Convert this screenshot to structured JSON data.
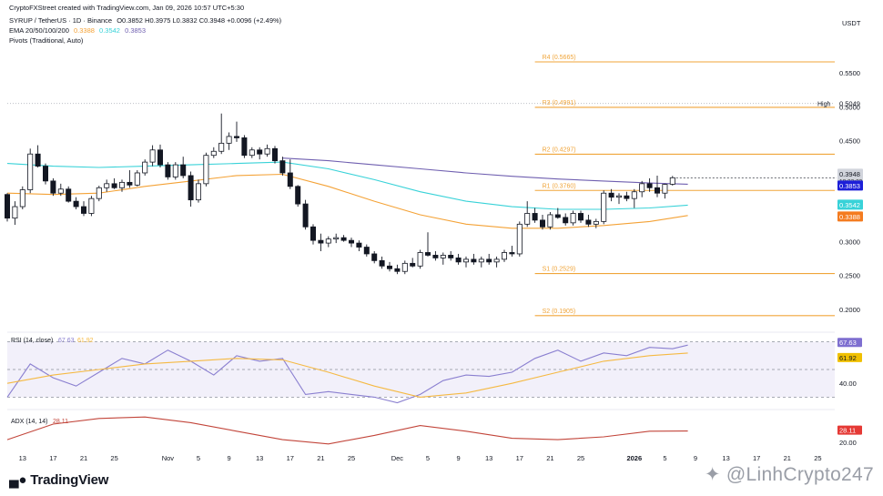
{
  "header": {
    "line1": "CryptoFXStreet created with TradingView.com, Jan 09, 2026 10:57 UTC+5:30",
    "symbol": "SYRUP / TetherUS · 1D · Binance",
    "ohlc": "O0.3852 H0.3975 L0.3832 C0.3948 +0.0096 (+2.49%)",
    "ema_label": "EMA 20/50/100/200",
    "ema_values": [
      "0.3388",
      "0.3542",
      "0.3853"
    ],
    "pivots_label": "Pivots (Traditional, Auto)"
  },
  "colors": {
    "up": "#ffffff",
    "down": "#131722",
    "pivot": "#f0a53a",
    "ema50": "#f4a236",
    "ema100": "#38d2d8",
    "ema200": "#6f5fb0",
    "rsi": "#8a7fd0",
    "rsi_ma": "#f5b942",
    "adx": "#c2453a",
    "high_line": "#b2b5be"
  },
  "branding": {
    "logo": "TradingView",
    "watermark": "LinhCrypto247"
  },
  "chart_data": [
    {
      "type": "candlestick",
      "title": "SYRUP / TetherUS · 1D · Binance",
      "y_axis_label": "USDT",
      "ylim": [
        0.17,
        0.58
      ],
      "yticks": [
        "0.5500",
        "0.5000",
        "0.4500",
        "0.3000",
        "0.2500",
        "0.2000"
      ],
      "x_ticks": [
        {
          "label": "13",
          "i": 2
        },
        {
          "label": "17",
          "i": 6
        },
        {
          "label": "21",
          "i": 10
        },
        {
          "label": "25",
          "i": 14
        },
        {
          "label": "Nov",
          "i": 21
        },
        {
          "label": "5",
          "i": 25
        },
        {
          "label": "9",
          "i": 29
        },
        {
          "label": "13",
          "i": 33
        },
        {
          "label": "17",
          "i": 37
        },
        {
          "label": "21",
          "i": 41
        },
        {
          "label": "25",
          "i": 45
        },
        {
          "label": "Dec",
          "i": 51
        },
        {
          "label": "5",
          "i": 55
        },
        {
          "label": "9",
          "i": 59
        },
        {
          "label": "13",
          "i": 63
        },
        {
          "label": "17",
          "i": 67
        },
        {
          "label": "21",
          "i": 71
        },
        {
          "label": "25",
          "i": 75
        },
        {
          "label": "2026",
          "i": 82
        },
        {
          "label": "5",
          "i": 86
        },
        {
          "label": "9",
          "i": 90
        },
        {
          "label": "13",
          "i": 94
        },
        {
          "label": "17",
          "i": 98
        },
        {
          "label": "21",
          "i": 102
        },
        {
          "label": "25",
          "i": 106
        }
      ],
      "candles": [
        [
          0.37,
          0.372,
          0.33,
          0.335
        ],
        [
          0.335,
          0.36,
          0.325,
          0.352
        ],
        [
          0.352,
          0.382,
          0.348,
          0.377
        ],
        [
          0.377,
          0.438,
          0.372,
          0.43
        ],
        [
          0.43,
          0.443,
          0.41,
          0.412
        ],
        [
          0.412,
          0.416,
          0.385,
          0.39
        ],
        [
          0.39,
          0.394,
          0.368,
          0.372
        ],
        [
          0.372,
          0.386,
          0.368,
          0.378
        ],
        [
          0.378,
          0.382,
          0.358,
          0.36
        ],
        [
          0.36,
          0.366,
          0.348,
          0.352
        ],
        [
          0.352,
          0.36,
          0.338,
          0.342
        ],
        [
          0.342,
          0.368,
          0.338,
          0.364
        ],
        [
          0.364,
          0.383,
          0.36,
          0.38
        ],
        [
          0.38,
          0.392,
          0.374,
          0.386
        ],
        [
          0.386,
          0.394,
          0.378,
          0.38
        ],
        [
          0.38,
          0.392,
          0.374,
          0.388
        ],
        [
          0.388,
          0.406,
          0.38,
          0.384
        ],
        [
          0.384,
          0.406,
          0.382,
          0.402
        ],
        [
          0.402,
          0.422,
          0.398,
          0.418
        ],
        [
          0.418,
          0.443,
          0.412,
          0.436
        ],
        [
          0.436,
          0.444,
          0.41,
          0.414
        ],
        [
          0.414,
          0.418,
          0.392,
          0.396
        ],
        [
          0.396,
          0.418,
          0.392,
          0.414
        ],
        [
          0.414,
          0.426,
          0.394,
          0.398
        ],
        [
          0.398,
          0.404,
          0.352,
          0.362
        ],
        [
          0.362,
          0.392,
          0.358,
          0.386
        ],
        [
          0.386,
          0.432,
          0.382,
          0.428
        ],
        [
          0.428,
          0.44,
          0.424,
          0.434
        ],
        [
          0.434,
          0.49,
          0.43,
          0.446
        ],
        [
          0.446,
          0.462,
          0.436,
          0.456
        ],
        [
          0.456,
          0.478,
          0.448,
          0.454
        ],
        [
          0.454,
          0.458,
          0.424,
          0.428
        ],
        [
          0.428,
          0.44,
          0.424,
          0.436
        ],
        [
          0.436,
          0.44,
          0.422,
          0.43
        ],
        [
          0.43,
          0.444,
          0.426,
          0.438
        ],
        [
          0.438,
          0.442,
          0.416,
          0.42
        ],
        [
          0.42,
          0.426,
          0.398,
          0.402
        ],
        [
          0.402,
          0.422,
          0.378,
          0.382
        ],
        [
          0.382,
          0.384,
          0.352,
          0.356
        ],
        [
          0.356,
          0.362,
          0.318,
          0.322
        ],
        [
          0.322,
          0.326,
          0.296,
          0.302
        ],
        [
          0.302,
          0.312,
          0.286,
          0.298
        ],
        [
          0.298,
          0.308,
          0.292,
          0.304
        ],
        [
          0.304,
          0.312,
          0.298,
          0.306
        ],
        [
          0.306,
          0.31,
          0.3,
          0.302
        ],
        [
          0.302,
          0.306,
          0.292,
          0.298
        ],
        [
          0.298,
          0.302,
          0.286,
          0.292
        ],
        [
          0.292,
          0.296,
          0.278,
          0.282
        ],
        [
          0.282,
          0.286,
          0.268,
          0.272
        ],
        [
          0.272,
          0.278,
          0.26,
          0.264
        ],
        [
          0.264,
          0.27,
          0.256,
          0.26
        ],
        [
          0.26,
          0.266,
          0.252,
          0.256
        ],
        [
          0.256,
          0.272,
          0.252,
          0.268
        ],
        [
          0.268,
          0.276,
          0.262,
          0.264
        ],
        [
          0.264,
          0.288,
          0.26,
          0.284
        ],
        [
          0.284,
          0.314,
          0.278,
          0.28
        ],
        [
          0.28,
          0.286,
          0.272,
          0.276
        ],
        [
          0.276,
          0.284,
          0.266,
          0.28
        ],
        [
          0.28,
          0.286,
          0.272,
          0.276
        ],
        [
          0.276,
          0.282,
          0.266,
          0.27
        ],
        [
          0.27,
          0.278,
          0.262,
          0.274
        ],
        [
          0.274,
          0.282,
          0.266,
          0.27
        ],
        [
          0.27,
          0.278,
          0.262,
          0.274
        ],
        [
          0.274,
          0.282,
          0.266,
          0.27
        ],
        [
          0.27,
          0.278,
          0.262,
          0.274
        ],
        [
          0.274,
          0.288,
          0.27,
          0.284
        ],
        [
          0.284,
          0.294,
          0.278,
          0.282
        ],
        [
          0.282,
          0.33,
          0.278,
          0.326
        ],
        [
          0.326,
          0.36,
          0.322,
          0.342
        ],
        [
          0.342,
          0.35,
          0.328,
          0.332
        ],
        [
          0.332,
          0.34,
          0.318,
          0.322
        ],
        [
          0.322,
          0.344,
          0.318,
          0.34
        ],
        [
          0.34,
          0.35,
          0.334,
          0.336
        ],
        [
          0.336,
          0.342,
          0.324,
          0.328
        ],
        [
          0.328,
          0.346,
          0.324,
          0.342
        ],
        [
          0.342,
          0.346,
          0.328,
          0.332
        ],
        [
          0.332,
          0.34,
          0.322,
          0.326
        ],
        [
          0.326,
          0.334,
          0.32,
          0.33
        ],
        [
          0.33,
          0.376,
          0.326,
          0.372
        ],
        [
          0.372,
          0.378,
          0.36,
          0.366
        ],
        [
          0.366,
          0.372,
          0.356,
          0.368
        ],
        [
          0.368,
          0.374,
          0.36,
          0.364
        ],
        [
          0.364,
          0.378,
          0.35,
          0.374
        ],
        [
          0.374,
          0.39,
          0.366,
          0.386
        ],
        [
          0.386,
          0.394,
          0.374,
          0.38
        ],
        [
          0.38,
          0.398,
          0.366,
          0.372
        ],
        [
          0.372,
          0.386,
          0.364,
          0.385
        ],
        [
          0.3852,
          0.3975,
          0.3832,
          0.3948
        ]
      ],
      "ema": [
        {
          "name": "EMA 50",
          "value": 0.3388,
          "points": [
            [
              0,
              0.372
            ],
            [
              6,
              0.37
            ],
            [
              12,
              0.372
            ],
            [
              18,
              0.382
            ],
            [
              24,
              0.39
            ],
            [
              30,
              0.398
            ],
            [
              36,
              0.4
            ],
            [
              42,
              0.382
            ],
            [
              48,
              0.36
            ],
            [
              54,
              0.34
            ],
            [
              60,
              0.326
            ],
            [
              66,
              0.32
            ],
            [
              72,
              0.32
            ],
            [
              78,
              0.324
            ],
            [
              84,
              0.33
            ],
            [
              89,
              0.3388
            ]
          ]
        },
        {
          "name": "EMA 100",
          "value": 0.3542,
          "points": [
            [
              0,
              0.416
            ],
            [
              6,
              0.412
            ],
            [
              12,
              0.41
            ],
            [
              18,
              0.412
            ],
            [
              24,
              0.414
            ],
            [
              30,
              0.416
            ],
            [
              36,
              0.418
            ],
            [
              42,
              0.408
            ],
            [
              48,
              0.392
            ],
            [
              54,
              0.374
            ],
            [
              60,
              0.36
            ],
            [
              66,
              0.352
            ],
            [
              72,
              0.348
            ],
            [
              78,
              0.348
            ],
            [
              84,
              0.35
            ],
            [
              89,
              0.3542
            ]
          ]
        },
        {
          "name": "EMA 200",
          "value": 0.3853,
          "points": [
            [
              36,
              0.424
            ],
            [
              42,
              0.42
            ],
            [
              48,
              0.414
            ],
            [
              54,
              0.408
            ],
            [
              60,
              0.402
            ],
            [
              66,
              0.397
            ],
            [
              72,
              0.393
            ],
            [
              78,
              0.39
            ],
            [
              84,
              0.387
            ],
            [
              89,
              0.3853
            ]
          ]
        }
      ],
      "pivots": [
        {
          "label": "R4 (0.5665)",
          "value": 0.5665,
          "start": 69
        },
        {
          "label": "R3 (0.4991)",
          "value": 0.4991,
          "start": 69
        },
        {
          "label": "R2 (0.4297)",
          "value": 0.4297,
          "start": 69
        },
        {
          "label": "R1 (0.3760)",
          "value": 0.376,
          "start": 69
        },
        {
          "label": "S1 (0.2529)",
          "value": 0.2529,
          "start": 69
        },
        {
          "label": "S2 (0.1905)",
          "value": 0.1905,
          "start": 69
        }
      ],
      "high_line": {
        "label": "High",
        "value": 0.5049
      },
      "price_labels": [
        {
          "value": "0.3948",
          "sub": "18:32:33",
          "y": 0.3948
        },
        {
          "value": "0.3853",
          "y": 0.3853
        },
        {
          "value": "0.3542",
          "y": 0.3542
        },
        {
          "value": "0.3388",
          "y": 0.3388
        }
      ]
    },
    {
      "type": "line",
      "title": "RSI (14, close)",
      "label": "RSI (14, close)",
      "legend_values": [
        "67.63",
        "61.92"
      ],
      "ylim": [
        25,
        75
      ],
      "yticks": [
        "40.00"
      ],
      "bands": [
        70,
        50,
        30
      ],
      "series": [
        {
          "name": "RSI",
          "x": [
            0,
            3,
            6,
            9,
            12,
            15,
            18,
            21,
            24,
            27,
            30,
            33,
            36,
            39,
            42,
            45,
            48,
            51,
            54,
            57,
            60,
            63,
            66,
            69,
            72,
            75,
            78,
            81,
            84,
            87,
            89
          ],
          "values": [
            30,
            54,
            44,
            38,
            48,
            58,
            54,
            64,
            56,
            46,
            60,
            56,
            58,
            32,
            34,
            32,
            30,
            26,
            32,
            42,
            46,
            45,
            48,
            58,
            64,
            56,
            62,
            60,
            66,
            65,
            67.63
          ]
        },
        {
          "name": "RSI MA",
          "x": [
            0,
            6,
            12,
            18,
            24,
            30,
            36,
            42,
            48,
            54,
            60,
            66,
            72,
            78,
            84,
            89
          ],
          "values": [
            40,
            46,
            50,
            54,
            56,
            58,
            57,
            48,
            38,
            30,
            33,
            40,
            48,
            56,
            60,
            61.92
          ]
        }
      ],
      "price_labels": [
        "67.63",
        "61.92"
      ]
    },
    {
      "type": "line",
      "title": "ADX (14, 14)",
      "label": "ADX (14, 14)",
      "legend_value": "28.11",
      "ylim": [
        15,
        42
      ],
      "yticks": [
        "20.00"
      ],
      "series": [
        {
          "name": "ADX",
          "x": [
            0,
            6,
            12,
            18,
            24,
            30,
            36,
            42,
            48,
            54,
            60,
            66,
            72,
            78,
            84,
            89
          ],
          "values": [
            22,
            33,
            37,
            38,
            34,
            28,
            22,
            19,
            25,
            32,
            28,
            23,
            22,
            24,
            28,
            28.11
          ]
        }
      ],
      "price_labels": [
        "28.11"
      ]
    }
  ]
}
